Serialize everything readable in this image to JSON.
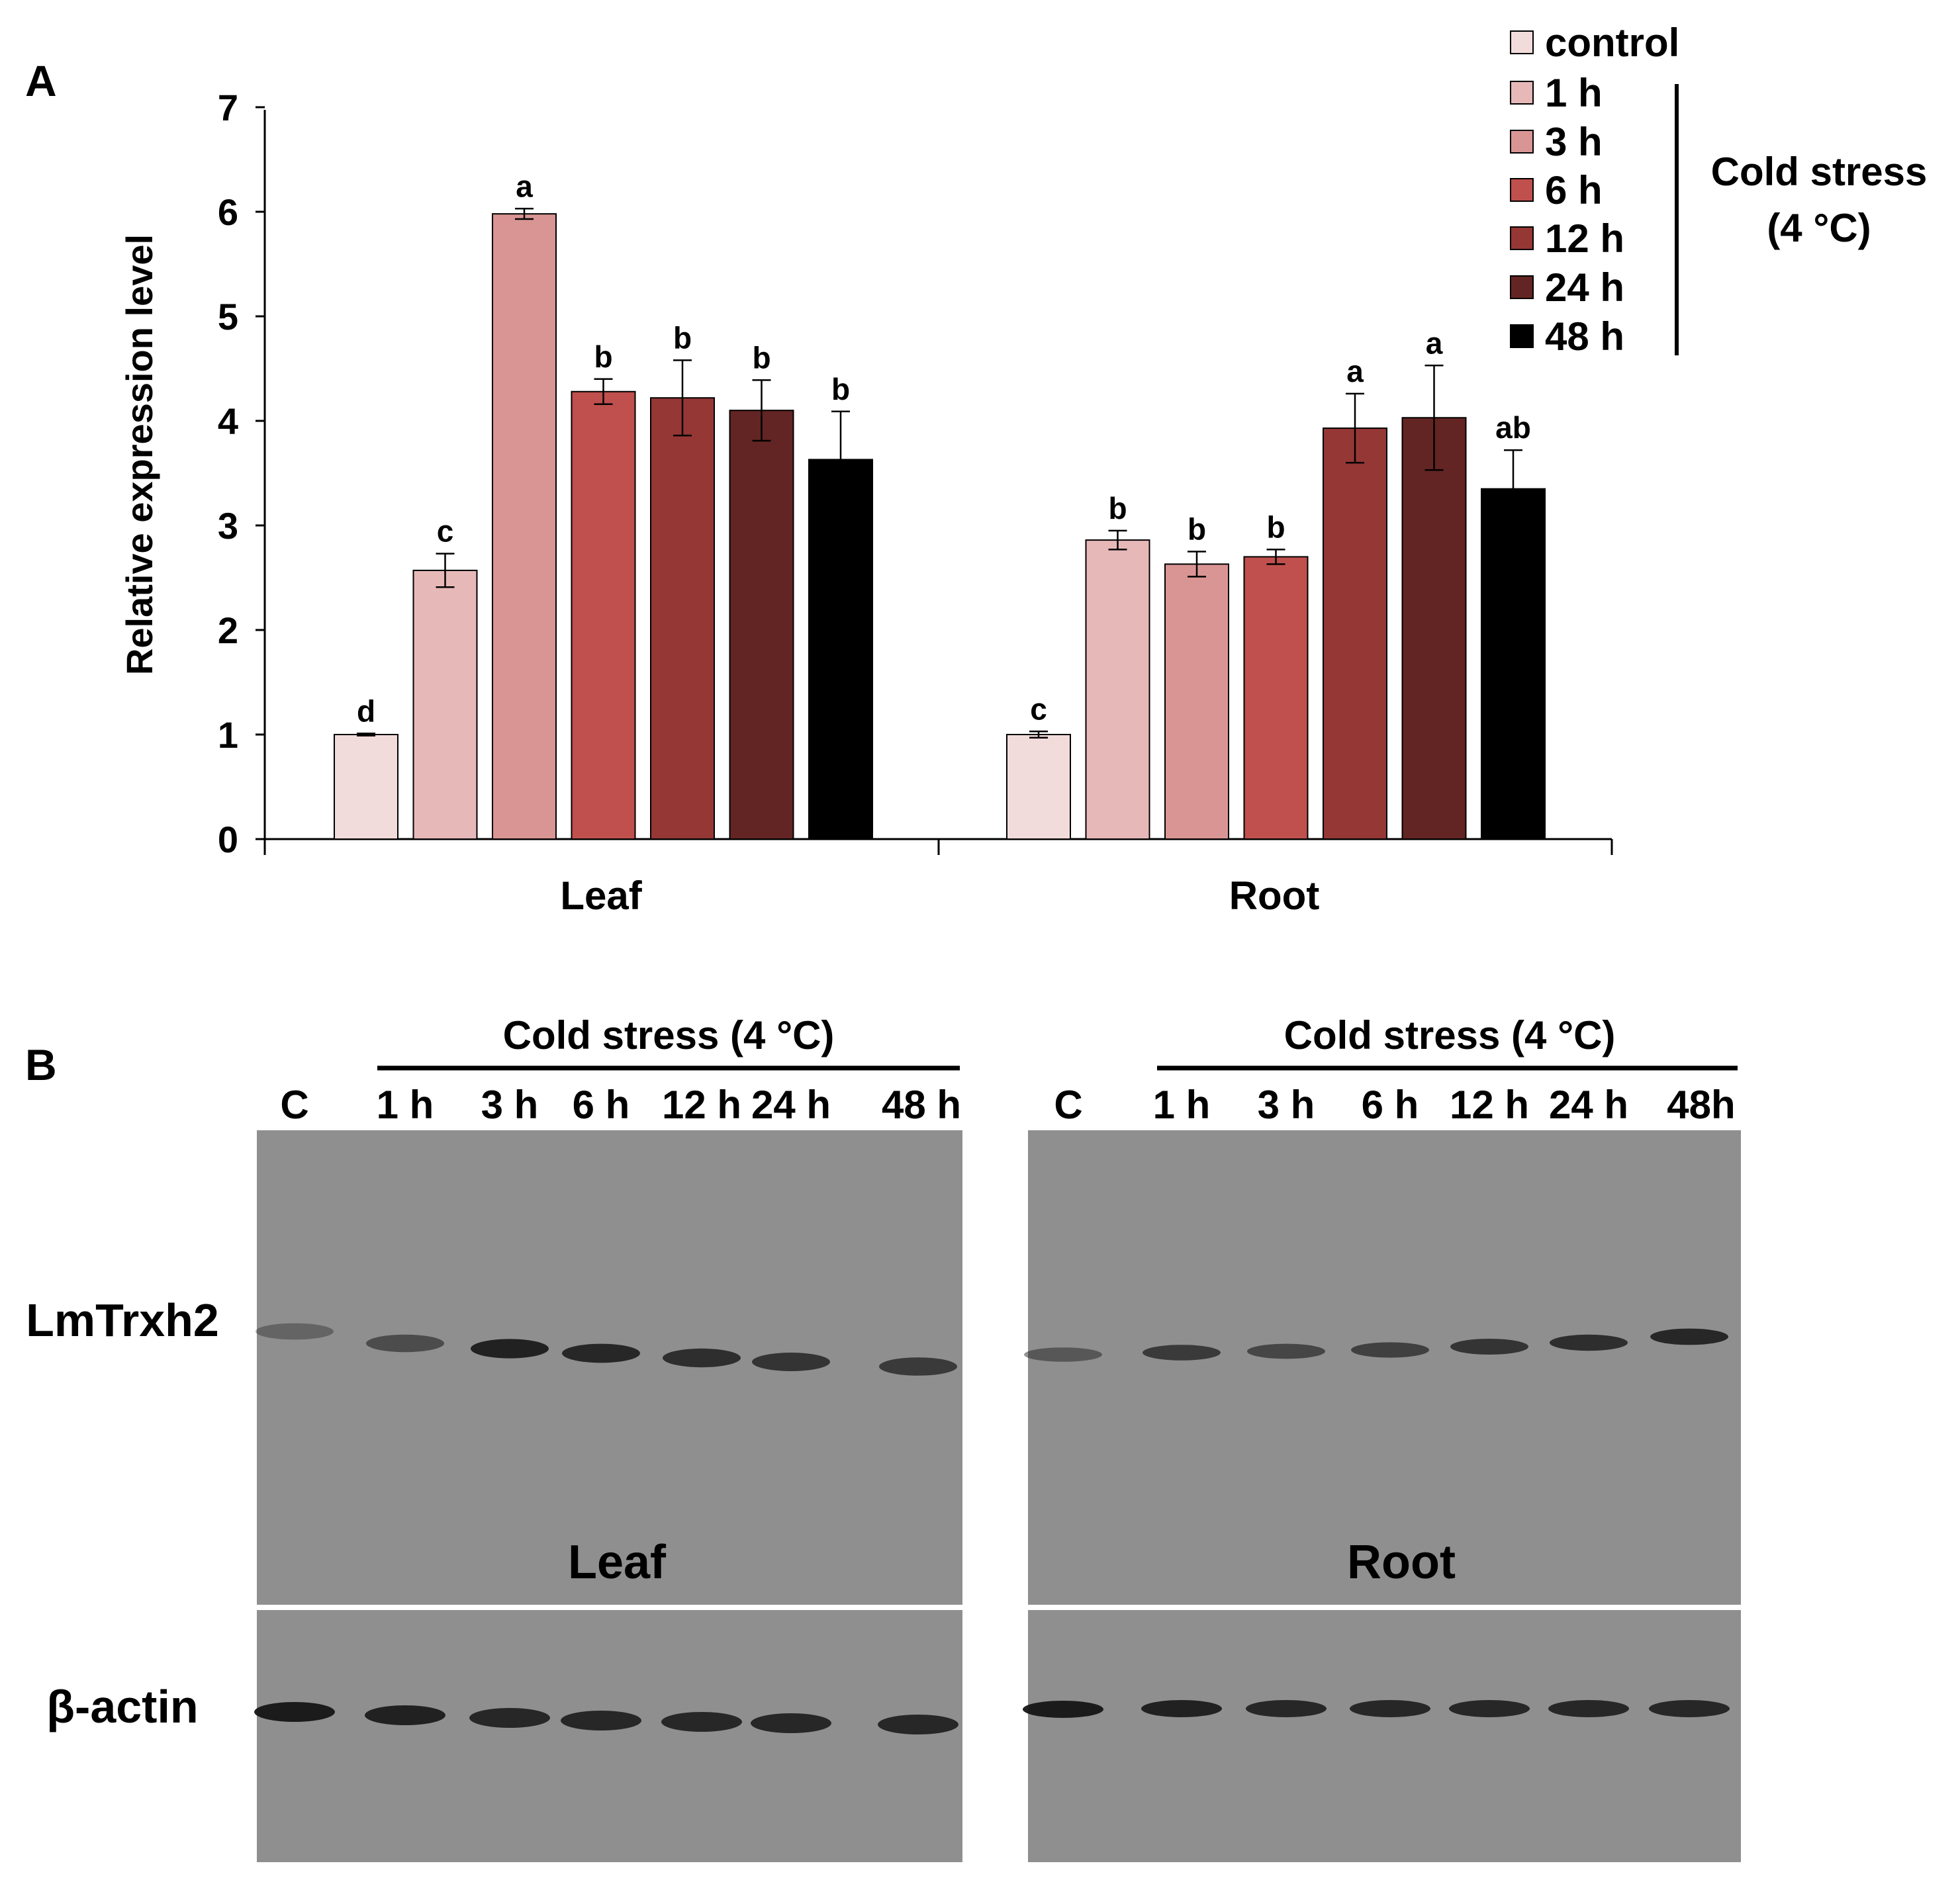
{
  "panel_a_label": "A",
  "panel_b_label": "B",
  "chart_data": {
    "type": "bar",
    "title": "",
    "xlabel": "",
    "ylabel": "Relative expression level",
    "ylim": [
      0,
      7
    ],
    "yticks": [
      "0",
      "1",
      "2",
      "3",
      "4",
      "5",
      "6",
      "7"
    ],
    "categories": [
      "Leaf",
      "Root"
    ],
    "series": [
      {
        "name": "control",
        "color": "#f2dcdb",
        "values": [
          1.0,
          1.0
        ],
        "errors": [
          0.01,
          0.03
        ],
        "letters": [
          "d",
          "c"
        ]
      },
      {
        "name": "1 h",
        "color": "#e6b9b8",
        "values": [
          2.57,
          2.86
        ],
        "errors": [
          0.16,
          0.09
        ],
        "letters": [
          "c",
          "b"
        ]
      },
      {
        "name": "3 h",
        "color": "#d99594",
        "values": [
          5.98,
          2.63
        ],
        "errors": [
          0.05,
          0.12
        ],
        "letters": [
          "a",
          "b"
        ]
      },
      {
        "name": "6 h",
        "color": "#c0504d",
        "values": [
          4.28,
          2.7
        ],
        "errors": [
          0.12,
          0.07
        ],
        "letters": [
          "b",
          "b"
        ]
      },
      {
        "name": "12 h",
        "color": "#953735",
        "values": [
          4.22,
          3.93
        ],
        "errors": [
          0.36,
          0.33
        ],
        "letters": [
          "b",
          "a"
        ]
      },
      {
        "name": "24 h",
        "color": "#632523",
        "values": [
          4.1,
          4.03
        ],
        "errors": [
          0.29,
          0.5
        ],
        "letters": [
          "b",
          "a"
        ]
      },
      {
        "name": "48 h",
        "color": "#000000",
        "values": [
          3.63,
          3.35
        ],
        "errors": [
          0.46,
          0.37
        ],
        "letters": [
          "b",
          "ab"
        ]
      }
    ],
    "legend_bracket_label": [
      "Cold stress",
      "(4 °C)"
    ],
    "legend_position": "top-right"
  },
  "blot": {
    "header": "Cold stress (4 °C)",
    "leaf_lanes": [
      "C",
      "1 h",
      "3 h",
      "6 h",
      "12 h",
      "24 h",
      "48 h"
    ],
    "root_lanes": [
      "C",
      "1 h",
      "3 h",
      "6 h",
      "12 h",
      "24 h",
      "48h"
    ],
    "row_labels": [
      "LmTrxh2",
      "β-actin"
    ],
    "panel_labels": [
      "Leaf",
      "Root"
    ],
    "membrane_color": "#8f8f8f",
    "band_color": "#151515",
    "leaf_target_intensity": [
      0.35,
      0.55,
      0.9,
      0.85,
      0.8,
      0.75,
      0.7
    ],
    "root_target_intensity": [
      0.45,
      0.7,
      0.6,
      0.65,
      0.75,
      0.8,
      0.85
    ],
    "actin_intensity": [
      0.95,
      0.9,
      0.85,
      0.85,
      0.85,
      0.85,
      0.85
    ]
  }
}
